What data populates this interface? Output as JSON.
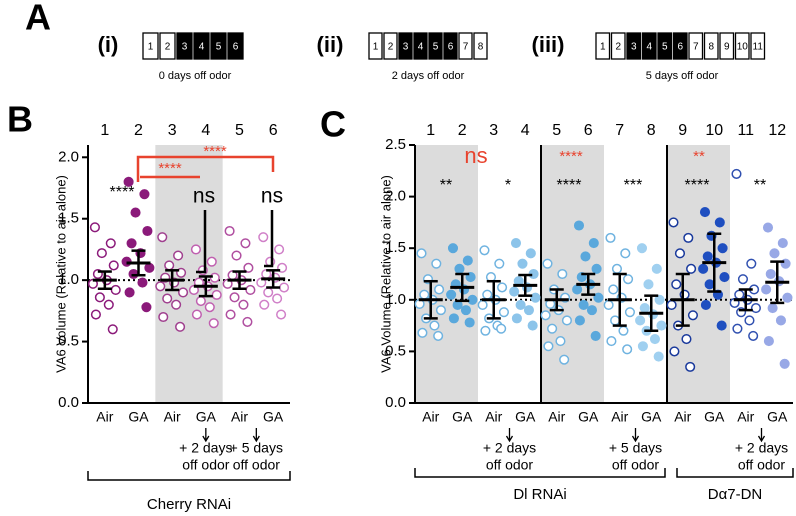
{
  "schedule": {
    "panel": "A",
    "rows": [
      {
        "label": "(i)",
        "days": [
          "1",
          "2",
          "3",
          "4",
          "5",
          "6"
        ],
        "odor": [
          false,
          false,
          true,
          true,
          true,
          true
        ],
        "caption": "0 days off odor"
      },
      {
        "label": "(ii)",
        "days": [
          "1",
          "2",
          "3",
          "4",
          "5",
          "6",
          "7",
          "8"
        ],
        "odor": [
          false,
          false,
          true,
          true,
          true,
          true,
          false,
          false
        ],
        "caption": "2 days off odor"
      },
      {
        "label": "(iii)",
        "days": [
          "1",
          "2",
          "3",
          "4",
          "5",
          "6",
          "7",
          "8",
          "9",
          "10",
          "11"
        ],
        "odor": [
          false,
          false,
          true,
          true,
          true,
          true,
          false,
          false,
          false,
          false,
          false
        ],
        "caption": "5 days off odor"
      }
    ]
  },
  "chart_data": [
    {
      "type": "dotplot",
      "panel": "B",
      "ylabel": "VA6 Volume (Relative to air alone)",
      "ylim": [
        0,
        2.1
      ],
      "yticks": [
        {
          "value": 0,
          "label": "0.0"
        },
        0.5,
        {
          "value": 1,
          "label": "1.0"
        },
        1.5,
        {
          "value": 2,
          "label": "2.0"
        }
      ],
      "reference": 1,
      "numbers": [
        "1",
        "2",
        "3",
        "4",
        "5",
        "6"
      ],
      "categories": [
        "Air",
        "GA",
        "Air",
        "GA",
        "Air",
        "GA"
      ],
      "groups": [
        {
          "color": "#8b1a7a",
          "marker": "open",
          "values": [
            1.43,
            1.3,
            1.22,
            1.12,
            1.05,
            1.0,
            0.97,
            0.92,
            0.86,
            0.8,
            0.72,
            0.6
          ],
          "mean": 1.0,
          "error": 0.07
        },
        {
          "color": "#8b1a7a",
          "marker": "filled",
          "values": [
            1.8,
            1.7,
            1.55,
            1.4,
            1.3,
            1.22,
            1.15,
            1.1,
            1.05,
            0.98,
            0.9,
            0.78
          ],
          "mean": 1.14,
          "error": 0.1
        },
        {
          "color": "#a0408f",
          "marker": "open",
          "values": [
            1.35,
            1.2,
            1.12,
            1.06,
            1.02,
            0.98,
            0.95,
            0.9,
            0.85,
            0.8,
            0.7,
            0.62
          ],
          "mean": 1.0,
          "error": 0.08
        },
        {
          "color": "#c060b0",
          "marker": "open",
          "values": [
            1.25,
            1.15,
            1.08,
            1.02,
            0.98,
            0.95,
            0.92,
            0.88,
            0.83,
            0.78,
            0.72,
            0.65
          ],
          "mean": 0.95,
          "error": 0.08
        },
        {
          "color": "#b04fa0",
          "marker": "open",
          "values": [
            1.4,
            1.3,
            1.2,
            1.1,
            1.04,
            1.0,
            0.97,
            0.92,
            0.86,
            0.8,
            0.72,
            0.66
          ],
          "mean": 1.0,
          "error": 0.07
        },
        {
          "color": "#d080c8",
          "marker": "open",
          "values": [
            1.35,
            1.25,
            1.15,
            1.1,
            1.05,
            1.02,
            0.98,
            0.94,
            0.9,
            0.85,
            0.8,
            0.72
          ],
          "mean": 1.01,
          "error": 0.07
        }
      ],
      "annotations": [
        {
          "text": "****",
          "color": "#000000"
        },
        {
          "text": "ns",
          "color": "#000000"
        },
        {
          "text": "ns",
          "color": "#000000"
        },
        {
          "text": "****",
          "color": "#e8432e"
        },
        {
          "text": "****",
          "color": "#e8432e"
        }
      ],
      "conditions": [
        {
          "lines": [
            "+ 2 days",
            "off odor"
          ]
        },
        {
          "lines": [
            "+ 5 days",
            "off odor"
          ]
        }
      ],
      "brackets": [
        {
          "label": "Cherry RNAi"
        }
      ]
    },
    {
      "type": "dotplot",
      "panel": "C",
      "ylabel": "VA6 Volume (Relative to air alone)",
      "ylim": [
        0,
        2.5
      ],
      "yticks": [
        {
          "value": 0,
          "label": "0.0"
        },
        0.5,
        {
          "value": 1,
          "label": "1.0"
        },
        1.5,
        {
          "value": 2,
          "label": "2.0"
        },
        2.5
      ],
      "reference": 1,
      "numbers": [
        "1",
        "2",
        "3",
        "4",
        "5",
        "6",
        "7",
        "8",
        "9",
        "10",
        "11",
        "12"
      ],
      "categories": [
        "Air",
        "GA",
        "Air",
        "GA",
        "Air",
        "GA",
        "Air",
        "GA",
        "Air",
        "GA",
        "Air",
        "GA"
      ],
      "groups": [
        {
          "color": "#6fb3e0",
          "marker": "open",
          "values": [
            1.45,
            1.35,
            1.2,
            1.1,
            1.05,
            1.0,
            0.96,
            0.9,
            0.82,
            0.75,
            0.68,
            0.65
          ],
          "mean": 1.0,
          "error": 0.18
        },
        {
          "color": "#5aa8dc",
          "marker": "filled",
          "values": [
            1.5,
            1.38,
            1.3,
            1.22,
            1.15,
            1.1,
            1.05,
            1.0,
            0.95,
            0.9,
            0.82,
            0.78
          ],
          "mean": 1.12,
          "error": 0.13
        },
        {
          "color": "#6fb3e0",
          "marker": "open",
          "values": [
            1.48,
            1.35,
            1.22,
            1.12,
            1.05,
            1.0,
            0.95,
            0.88,
            0.82,
            0.75,
            0.7,
            0.72
          ],
          "mean": 1.0,
          "error": 0.18
        },
        {
          "color": "#8cc4ea",
          "marker": "filled",
          "values": [
            1.55,
            1.45,
            1.35,
            1.25,
            1.18,
            1.12,
            1.08,
            1.02,
            0.95,
            0.9,
            0.82,
            0.75
          ],
          "mean": 1.14,
          "error": 0.1
        },
        {
          "color": "#6fb3e0",
          "marker": "open",
          "values": [
            1.35,
            1.25,
            1.1,
            1.02,
            0.96,
            0.9,
            0.85,
            0.8,
            0.72,
            0.6,
            0.55,
            0.42
          ],
          "mean": 1.0,
          "error": 0.1
        },
        {
          "color": "#5aa8dc",
          "marker": "filled",
          "values": [
            1.72,
            1.55,
            1.42,
            1.3,
            1.22,
            1.15,
            1.1,
            1.02,
            0.95,
            0.9,
            0.8,
            0.65
          ],
          "mean": 1.15,
          "error": 0.1
        },
        {
          "color": "#6fb3e0",
          "marker": "open",
          "values": [
            1.6,
            1.45,
            1.3,
            1.2,
            1.1,
            1.02,
            0.95,
            0.88,
            0.8,
            0.7,
            0.6,
            0.52
          ],
          "mean": 1.0,
          "error": 0.25
        },
        {
          "color": "#a0d0f0",
          "marker": "filled",
          "values": [
            1.5,
            1.3,
            1.15,
            1.0,
            0.92,
            0.86,
            0.8,
            0.75,
            0.7,
            0.62,
            0.55,
            0.45
          ],
          "mean": 0.87,
          "error": 0.17
        },
        {
          "color": "#1a3a9c",
          "marker": "open",
          "values": [
            1.75,
            1.6,
            1.45,
            1.3,
            1.15,
            1.05,
            0.95,
            0.85,
            0.75,
            0.62,
            0.5,
            0.35
          ],
          "mean": 1.0,
          "error": 0.25
        },
        {
          "color": "#1f4fc0",
          "marker": "filled",
          "values": [
            1.85,
            1.75,
            1.62,
            1.5,
            1.42,
            1.36,
            1.3,
            1.22,
            1.15,
            1.05,
            0.95,
            0.75
          ],
          "mean": 1.36,
          "error": 0.28
        },
        {
          "color": "#3050b0",
          "marker": "open",
          "values": [
            2.22,
            1.35,
            1.2,
            1.1,
            1.05,
            1.0,
            0.97,
            0.92,
            0.88,
            0.8,
            0.72,
            0.65
          ],
          "mean": 1.0,
          "error": 0.1
        },
        {
          "color": "#98a8e6",
          "marker": "filled",
          "values": [
            1.7,
            1.55,
            1.45,
            1.35,
            1.25,
            1.18,
            1.1,
            1.02,
            0.92,
            0.8,
            0.6,
            0.38
          ],
          "mean": 1.17,
          "error": 0.2
        }
      ],
      "annotations": [
        {
          "text": "ns",
          "color": "#e8432e"
        },
        {
          "text": "**",
          "color": "#000000"
        },
        {
          "text": "*",
          "color": "#000000"
        },
        {
          "text": "****",
          "color": "#e8432e"
        },
        {
          "text": "****",
          "color": "#000000"
        },
        {
          "text": "***",
          "color": "#000000"
        },
        {
          "text": "**",
          "color": "#e8432e"
        },
        {
          "text": "****",
          "color": "#000000"
        },
        {
          "text": "**",
          "color": "#000000"
        }
      ],
      "conditions": [
        {
          "lines": [
            "+ 2 days",
            "off odor"
          ]
        },
        {
          "lines": [
            "+ 5 days",
            "off odor"
          ]
        },
        {
          "lines": [
            "+ 2 days",
            "off odor"
          ]
        }
      ],
      "brackets": [
        {
          "label": "Dl RNAi"
        },
        {
          "label": "Dα7-DN"
        }
      ]
    }
  ]
}
